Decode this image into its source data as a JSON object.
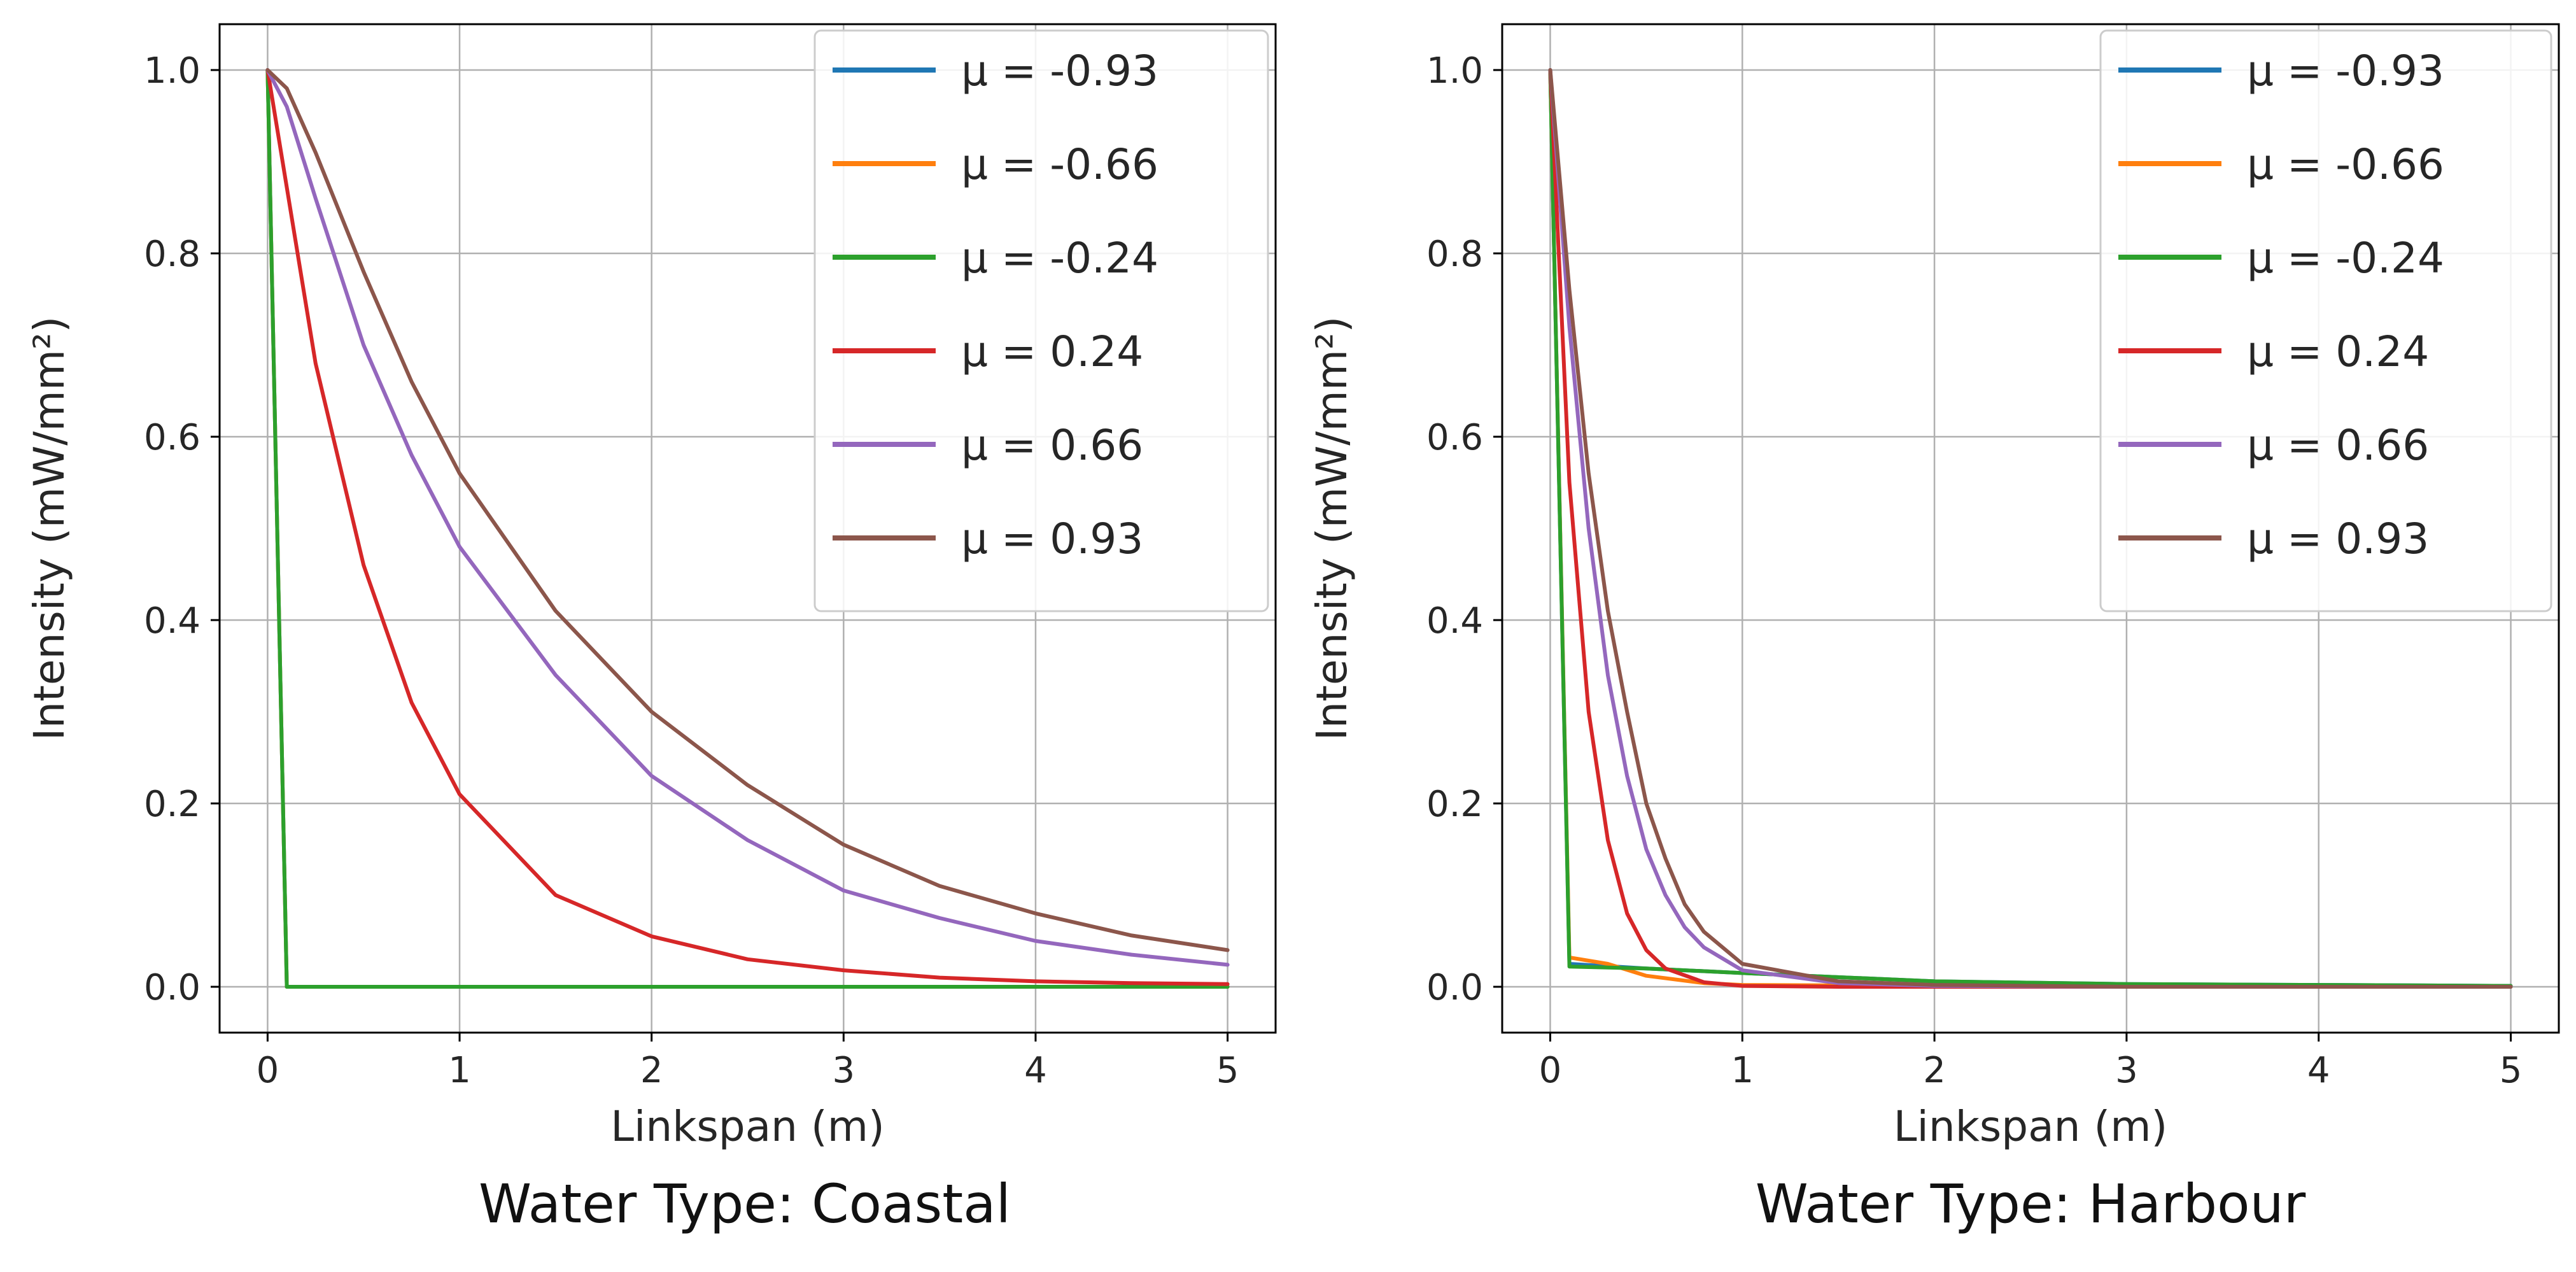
{
  "chart_data": [
    {
      "type": "line",
      "caption": "Water Type: Coastal",
      "xlabel": "Linkspan (m)",
      "ylabel": "Intensity (mW/mm²)",
      "xlim": [
        -0.25,
        5.25
      ],
      "ylim": [
        -0.05,
        1.05
      ],
      "xticks": [
        "0",
        "1",
        "2",
        "3",
        "4",
        "5"
      ],
      "yticks": [
        "0.0",
        "0.2",
        "0.4",
        "0.6",
        "0.8",
        "1.0"
      ],
      "grid": true,
      "legend_position": "top-right",
      "series": [
        {
          "name": "μ = -0.93",
          "color": "#1f77b4",
          "x": [
            0,
            0.1,
            0.5,
            1,
            2,
            3,
            4,
            5
          ],
          "y": [
            1.0,
            0.0,
            0.0,
            0.0,
            0.0,
            0.0,
            0.0,
            0.0
          ]
        },
        {
          "name": "μ = -0.66",
          "color": "#ff7f0e",
          "x": [
            0,
            0.1,
            0.5,
            1,
            2,
            3,
            4,
            5
          ],
          "y": [
            1.0,
            0.0,
            0.0,
            0.0,
            0.0,
            0.0,
            0.0,
            0.0
          ]
        },
        {
          "name": "μ = -0.24",
          "color": "#2ca02c",
          "x": [
            0,
            0.1,
            0.5,
            1,
            2,
            3,
            4,
            5
          ],
          "y": [
            1.0,
            0.0,
            0.0,
            0.0,
            0.0,
            0.0,
            0.0,
            0.0
          ]
        },
        {
          "name": "μ = 0.24",
          "color": "#d62728",
          "x": [
            0,
            0.25,
            0.5,
            0.75,
            1,
            1.5,
            2,
            2.5,
            3,
            3.5,
            4,
            4.5,
            5
          ],
          "y": [
            1.0,
            0.68,
            0.46,
            0.31,
            0.21,
            0.1,
            0.055,
            0.03,
            0.018,
            0.01,
            0.006,
            0.004,
            0.003
          ]
        },
        {
          "name": "μ = 0.66",
          "color": "#9467bd",
          "x": [
            0,
            0.1,
            0.25,
            0.5,
            0.75,
            1,
            1.5,
            2,
            2.5,
            3,
            3.5,
            4,
            4.5,
            5
          ],
          "y": [
            1.0,
            0.96,
            0.86,
            0.7,
            0.58,
            0.48,
            0.34,
            0.23,
            0.16,
            0.105,
            0.075,
            0.05,
            0.035,
            0.024
          ]
        },
        {
          "name": "μ = 0.93",
          "color": "#8c564b",
          "x": [
            0,
            0.1,
            0.25,
            0.5,
            0.75,
            1,
            1.5,
            2,
            2.5,
            3,
            3.5,
            4,
            4.5,
            5
          ],
          "y": [
            1.0,
            0.98,
            0.91,
            0.78,
            0.66,
            0.56,
            0.41,
            0.3,
            0.22,
            0.155,
            0.11,
            0.08,
            0.056,
            0.04
          ]
        }
      ]
    },
    {
      "type": "line",
      "caption": "Water Type: Harbour",
      "xlabel": "Linkspan (m)",
      "ylabel": "Intensity (mW/mm²)",
      "xlim": [
        -0.25,
        5.25
      ],
      "ylim": [
        -0.05,
        1.05
      ],
      "xticks": [
        "0",
        "1",
        "2",
        "3",
        "4",
        "5"
      ],
      "yticks": [
        "0.0",
        "0.2",
        "0.4",
        "0.6",
        "0.8",
        "1.0"
      ],
      "grid": true,
      "legend_position": "top-right",
      "series": [
        {
          "name": "μ = -0.93",
          "color": "#1f77b4",
          "x": [
            0,
            0.1,
            0.5,
            1,
            2,
            3,
            4,
            5
          ],
          "y": [
            1.0,
            0.025,
            0.02,
            0.015,
            0.006,
            0.003,
            0.002,
            0.001
          ]
        },
        {
          "name": "μ = -0.66",
          "color": "#ff7f0e",
          "x": [
            0,
            0.1,
            0.3,
            0.5,
            0.8,
            1,
            2,
            3,
            4,
            5
          ],
          "y": [
            1.0,
            0.032,
            0.025,
            0.012,
            0.004,
            0.002,
            0.001,
            0.0,
            0.0,
            0.0
          ]
        },
        {
          "name": "μ = -0.24",
          "color": "#2ca02c",
          "x": [
            0,
            0.1,
            0.5,
            1,
            2,
            3,
            4,
            5
          ],
          "y": [
            1.0,
            0.022,
            0.02,
            0.015,
            0.006,
            0.003,
            0.002,
            0.001
          ]
        },
        {
          "name": "μ = 0.24",
          "color": "#d62728",
          "x": [
            0,
            0.1,
            0.2,
            0.3,
            0.4,
            0.5,
            0.6,
            0.8,
            1,
            1.5,
            2,
            3,
            4,
            5
          ],
          "y": [
            1.0,
            0.55,
            0.3,
            0.16,
            0.08,
            0.04,
            0.02,
            0.005,
            0.001,
            0.0,
            0.0,
            0.0,
            0.0,
            0.0
          ]
        },
        {
          "name": "μ = 0.66",
          "color": "#9467bd",
          "x": [
            0,
            0.1,
            0.2,
            0.3,
            0.4,
            0.5,
            0.6,
            0.7,
            0.8,
            1,
            1.5,
            2,
            3,
            4,
            5
          ],
          "y": [
            1.0,
            0.72,
            0.5,
            0.34,
            0.23,
            0.15,
            0.1,
            0.065,
            0.043,
            0.018,
            0.004,
            0.001,
            0.0,
            0.0,
            0.0
          ]
        },
        {
          "name": "μ = 0.93",
          "color": "#8c564b",
          "x": [
            0,
            0.1,
            0.2,
            0.3,
            0.4,
            0.5,
            0.6,
            0.7,
            0.8,
            1,
            1.5,
            2,
            3,
            4,
            5
          ],
          "y": [
            1.0,
            0.76,
            0.56,
            0.41,
            0.3,
            0.2,
            0.14,
            0.09,
            0.06,
            0.025,
            0.006,
            0.002,
            0.0,
            0.0,
            0.0
          ]
        }
      ]
    }
  ]
}
